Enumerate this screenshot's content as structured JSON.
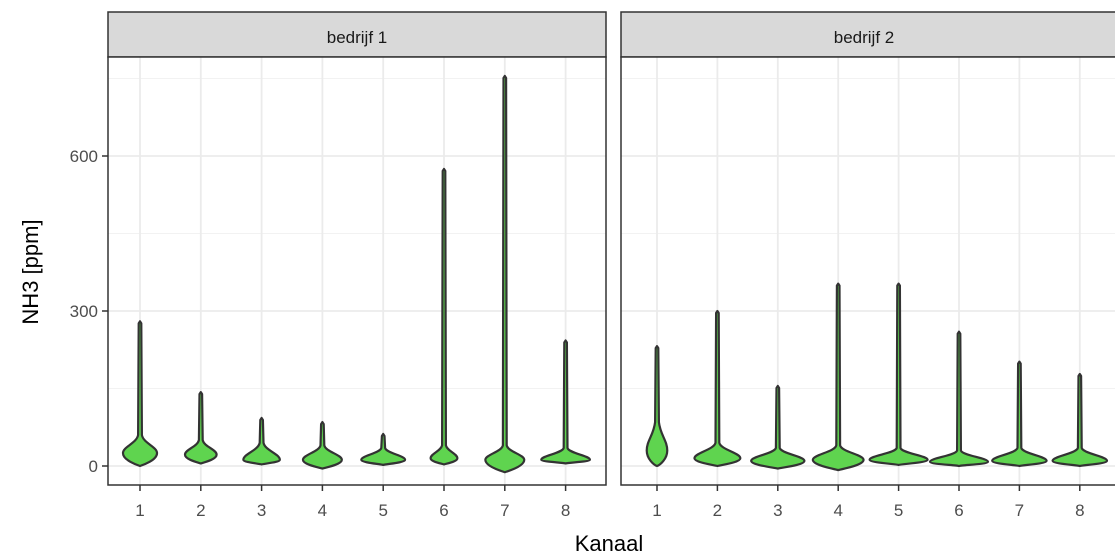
{
  "chart_data": {
    "type": "violin",
    "title": "",
    "xlabel": "Kanaal",
    "ylabel": "NH3 [ppm]",
    "ylim": [
      -40,
      790
    ],
    "yticks": [
      0,
      300,
      600
    ],
    "categories": [
      "1",
      "2",
      "3",
      "4",
      "5",
      "6",
      "7",
      "8"
    ],
    "grid": true,
    "legend": "none",
    "fill_color": "#5fd44f",
    "outline_color": "#333333",
    "panels": [
      {
        "name": "bedrijf 1",
        "violins": [
          {
            "category": "1",
            "min": 0,
            "max": 280,
            "mode": 25,
            "body_top": 60,
            "half_width": 0.28
          },
          {
            "category": "2",
            "min": 5,
            "max": 143,
            "mode": 22,
            "body_top": 50,
            "half_width": 0.26
          },
          {
            "category": "3",
            "min": 3,
            "max": 93,
            "mode": 12,
            "body_top": 45,
            "half_width": 0.3
          },
          {
            "category": "4",
            "min": -5,
            "max": 85,
            "mode": 12,
            "body_top": 40,
            "half_width": 0.32
          },
          {
            "category": "5",
            "min": 2,
            "max": 62,
            "mode": 12,
            "body_top": 35,
            "half_width": 0.36
          },
          {
            "category": "6",
            "min": 3,
            "max": 575,
            "mode": 15,
            "body_top": 40,
            "half_width": 0.22
          },
          {
            "category": "7",
            "min": -12,
            "max": 755,
            "mode": 12,
            "body_top": 40,
            "half_width": 0.32
          },
          {
            "category": "8",
            "min": 5,
            "max": 243,
            "mode": 12,
            "body_top": 35,
            "half_width": 0.4
          }
        ]
      },
      {
        "name": "bedrijf 2",
        "violins": [
          {
            "category": "1",
            "min": 0,
            "max": 232,
            "mode": 30,
            "body_top": 85,
            "half_width": 0.17
          },
          {
            "category": "2",
            "min": 0,
            "max": 300,
            "mode": 15,
            "body_top": 45,
            "half_width": 0.38
          },
          {
            "category": "3",
            "min": -5,
            "max": 155,
            "mode": 10,
            "body_top": 35,
            "half_width": 0.44
          },
          {
            "category": "4",
            "min": -8,
            "max": 353,
            "mode": 12,
            "body_top": 40,
            "half_width": 0.42
          },
          {
            "category": "5",
            "min": 2,
            "max": 353,
            "mode": 12,
            "body_top": 35,
            "half_width": 0.48
          },
          {
            "category": "6",
            "min": 0,
            "max": 260,
            "mode": 8,
            "body_top": 30,
            "half_width": 0.48
          },
          {
            "category": "7",
            "min": 0,
            "max": 202,
            "mode": 10,
            "body_top": 35,
            "half_width": 0.45
          },
          {
            "category": "8",
            "min": 0,
            "max": 178,
            "mode": 10,
            "body_top": 35,
            "half_width": 0.45
          }
        ]
      }
    ]
  }
}
